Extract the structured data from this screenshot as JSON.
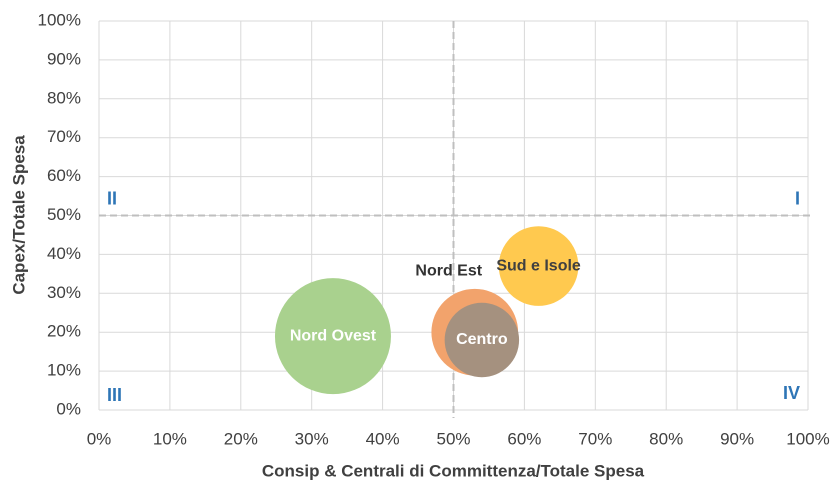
{
  "chart_data": {
    "type": "bubble",
    "x_label": "Consip & Centrali di Committenza/Totale Spesa",
    "y_label": "Capex/Totale Spesa",
    "xlim": [
      0,
      100
    ],
    "ylim": [
      0,
      100
    ],
    "xticks": [
      {
        "value": 0,
        "label": "0%"
      },
      {
        "value": 10,
        "label": "10%"
      },
      {
        "value": 20,
        "label": "20%"
      },
      {
        "value": 30,
        "label": "30%"
      },
      {
        "value": 40,
        "label": "40%"
      },
      {
        "value": 50,
        "label": "50%"
      },
      {
        "value": 60,
        "label": "60%"
      },
      {
        "value": 70,
        "label": "70%"
      },
      {
        "value": 80,
        "label": "80%"
      },
      {
        "value": 90,
        "label": "90%"
      },
      {
        "value": 100,
        "label": "100%"
      }
    ],
    "yticks": [
      {
        "value": 0,
        "label": "0%"
      },
      {
        "value": 10,
        "label": "10%"
      },
      {
        "value": 20,
        "label": "20%"
      },
      {
        "value": 30,
        "label": "30%"
      },
      {
        "value": 40,
        "label": "40%"
      },
      {
        "value": 50,
        "label": "50%"
      },
      {
        "value": 60,
        "label": "60%"
      },
      {
        "value": 70,
        "label": "70%"
      },
      {
        "value": 80,
        "label": "80%"
      },
      {
        "value": 90,
        "label": "90%"
      },
      {
        "value": 100,
        "label": "100%"
      }
    ],
    "grid": true,
    "x_divider": 50,
    "y_divider": 50,
    "series": [
      {
        "name": "Nord Ovest",
        "color": "#a9d18e",
        "label_color": "#ffffff",
        "label_position": "center",
        "x": 33,
        "y": 19,
        "size": 34
      },
      {
        "name": "Nord Est",
        "color": "#f2a36c",
        "label_color": "#333333",
        "label_position": "above-left",
        "x": 53,
        "y": 20,
        "size": 19
      },
      {
        "name": "Centro",
        "color": "#a5917f",
        "label_color": "#ffffff",
        "label_position": "center",
        "x": 54,
        "y": 18,
        "size": 14
      },
      {
        "name": "Sud e Isole",
        "color": "#ffc94f",
        "label_color": "#404040",
        "label_position": "center",
        "x": 62,
        "y": 37,
        "size": 16
      }
    ],
    "annotations": [
      {
        "text": "I",
        "corner": "upper-right"
      },
      {
        "text": "II",
        "corner": "upper-left"
      },
      {
        "text": "III",
        "corner": "lower-left"
      },
      {
        "text": "IV",
        "corner": "lower-right"
      }
    ]
  }
}
